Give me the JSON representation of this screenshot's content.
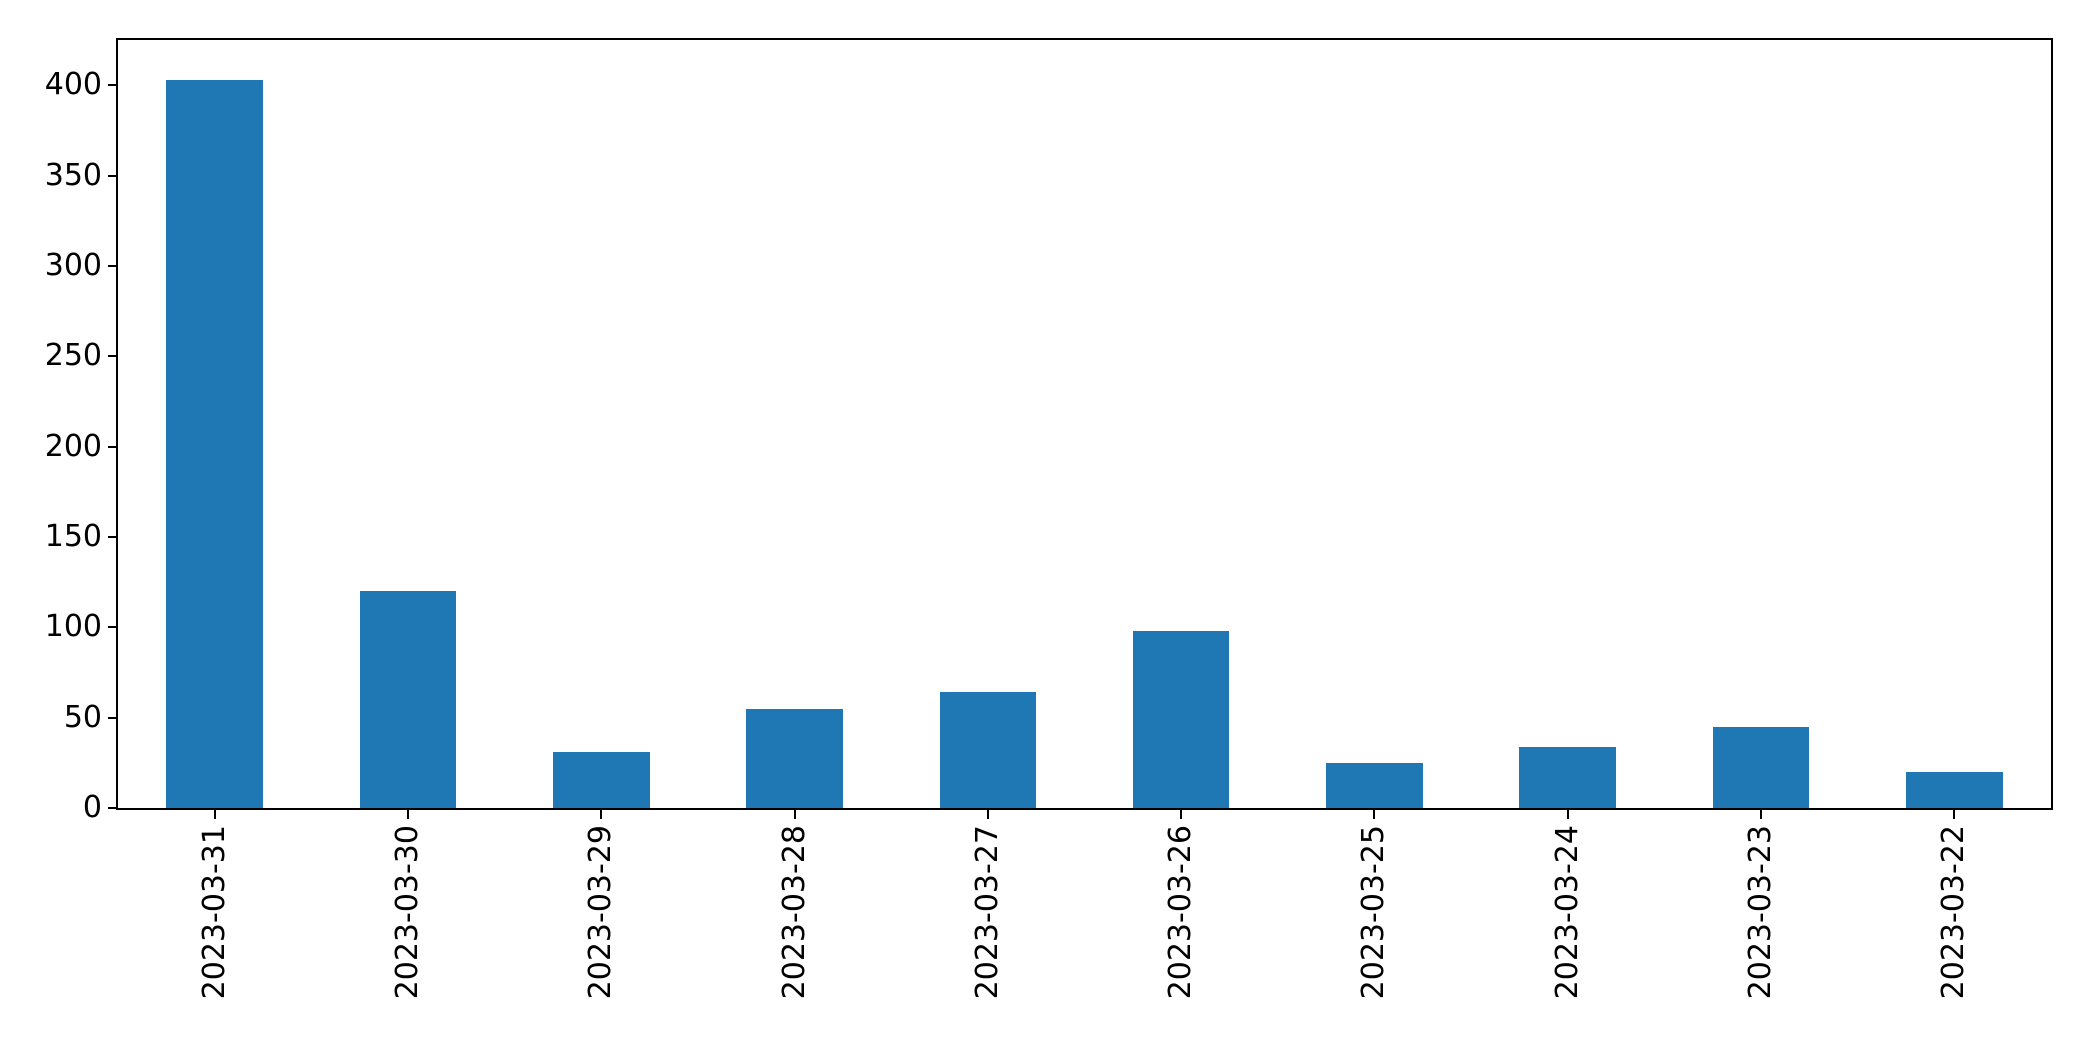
{
  "figure": {
    "background_color": "#ffffff"
  },
  "chart_data": {
    "type": "bar",
    "title": "",
    "xlabel": "",
    "ylabel": "",
    "categories": [
      "2023-03-31",
      "2023-03-30",
      "2023-03-29",
      "2023-03-28",
      "2023-03-27",
      "2023-03-26",
      "2023-03-25",
      "2023-03-24",
      "2023-03-23",
      "2023-03-22"
    ],
    "values": [
      403,
      120,
      31,
      55,
      64,
      98,
      25,
      34,
      45,
      20
    ],
    "yticks": [
      0,
      50,
      100,
      150,
      200,
      250,
      300,
      350,
      400
    ],
    "ylim": [
      0,
      425
    ],
    "x_tick_rotation_deg": 90,
    "bar_width_fraction": 0.5,
    "grid": false,
    "legend": false,
    "bar_color": "#1f77b4",
    "axis_color": "#000000",
    "text_color": "#000000"
  }
}
